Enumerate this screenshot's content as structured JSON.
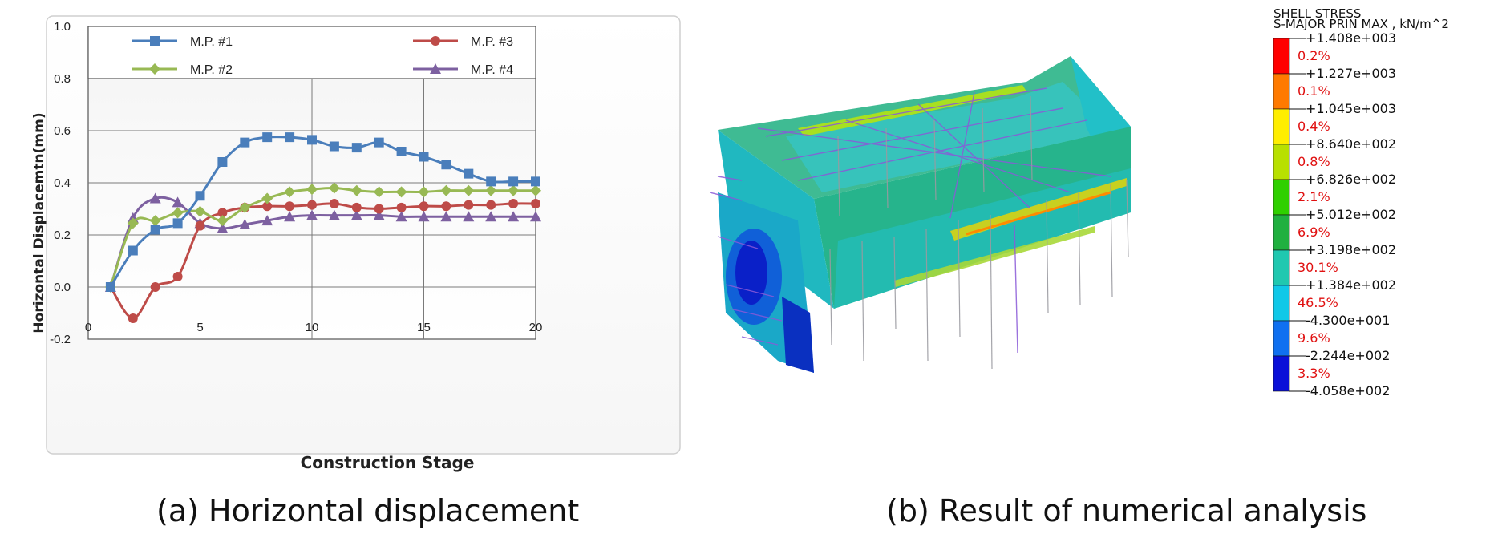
{
  "captions": {
    "a": "(a) Horizontal displacement",
    "b": "(b) Result of numerical analysis"
  },
  "chart_data": {
    "type": "line",
    "xlabel": "Construction Stage",
    "ylabel": "Horizontal Displacemtn(mm)",
    "xlim": [
      0,
      20
    ],
    "ylim": [
      -0.2,
      1.0
    ],
    "xticks": [
      "0",
      "5",
      "10",
      "15",
      "20"
    ],
    "yticks": [
      "-0.2",
      "0.0",
      "0.2",
      "0.4",
      "0.6",
      "0.8",
      "1.0"
    ],
    "legend_placement": "top",
    "grid": true,
    "x": [
      1,
      2,
      3,
      4,
      5,
      6,
      7,
      8,
      9,
      10,
      11,
      12,
      13,
      14,
      15,
      16,
      17,
      18,
      19,
      20
    ],
    "series": [
      {
        "name": "M.P. #1",
        "color": "#4a7ebb",
        "marker": "square",
        "values": [
          0.0,
          0.14,
          0.22,
          0.245,
          0.35,
          0.48,
          0.555,
          0.575,
          0.575,
          0.565,
          0.54,
          0.535,
          0.555,
          0.52,
          0.5,
          0.47,
          0.435,
          0.405,
          0.405,
          0.405
        ]
      },
      {
        "name": "M.P. #2",
        "color": "#98b954",
        "marker": "diamond",
        "values": [
          0.0,
          0.245,
          0.255,
          0.285,
          0.29,
          0.255,
          0.305,
          0.34,
          0.365,
          0.375,
          0.38,
          0.37,
          0.365,
          0.365,
          0.365,
          0.37,
          0.37,
          0.37,
          0.37,
          0.37
        ]
      },
      {
        "name": "M.P. #3",
        "color": "#be4b48",
        "marker": "circle",
        "values": [
          0.0,
          -0.12,
          0.0,
          0.04,
          0.235,
          0.285,
          0.305,
          0.31,
          0.31,
          0.315,
          0.32,
          0.305,
          0.3,
          0.305,
          0.31,
          0.31,
          0.315,
          0.315,
          0.32,
          0.32
        ]
      },
      {
        "name": "M.P. #4",
        "color": "#7d60a0",
        "marker": "triangle",
        "values": [
          0.0,
          0.265,
          0.34,
          0.325,
          0.245,
          0.225,
          0.24,
          0.255,
          0.27,
          0.275,
          0.275,
          0.275,
          0.275,
          0.27,
          0.27,
          0.27,
          0.27,
          0.27,
          0.27,
          0.27
        ]
      }
    ]
  },
  "contour_legend": {
    "title_line1": "SHELL STRESS",
    "title_line2": "S-MAJOR PRIN MAX , kN/m^2",
    "levels": [
      "+1.408e+003",
      "+1.227e+003",
      "+1.045e+003",
      "+8.640e+002",
      "+6.826e+002",
      "+5.012e+002",
      "+3.198e+002",
      "+1.384e+002",
      "-4.300e+001",
      "-2.244e+002",
      "-4.058e+002"
    ],
    "percents": [
      "0.2%",
      "0.1%",
      "0.4%",
      "0.8%",
      "2.1%",
      "6.9%",
      "30.1%",
      "46.5%",
      "9.6%",
      "3.3%"
    ],
    "colors": [
      "#ff0000",
      "#ff7a00",
      "#ffee00",
      "#b8e000",
      "#2fd000",
      "#20b040",
      "#20c8b0",
      "#10c8e8",
      "#1070f0",
      "#0a10d8"
    ]
  }
}
